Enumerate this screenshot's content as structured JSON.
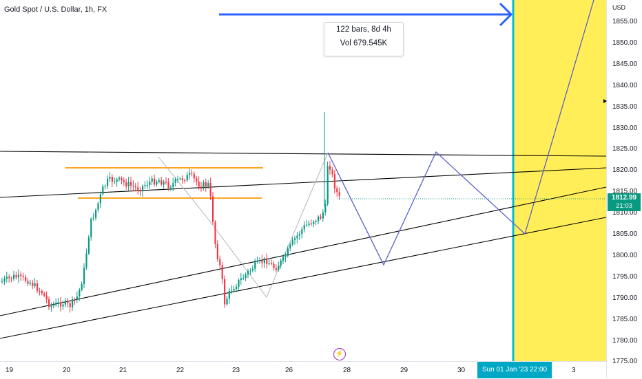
{
  "header": {
    "symbol_title": "Gold Spot / U.S. Dollar, 1h, FX"
  },
  "price_axis": {
    "currency": "USD",
    "ticks": [
      "1855.00",
      "1850.00",
      "1845.00",
      "1840.00",
      "1835.00",
      "1830.00",
      "1825.00",
      "1820.00",
      "1815.00",
      "1810.00",
      "1805.00",
      "1800.00",
      "1795.00",
      "1790.00",
      "1785.00",
      "1780.00",
      "1775.00"
    ],
    "last_price": "1812.99",
    "countdown": "21:03"
  },
  "time_axis": {
    "ticks": [
      "19",
      "20",
      "21",
      "22",
      "23",
      "26",
      "28",
      "29",
      "30",
      "3"
    ],
    "crosshair_date": "Sun 01 Jan '23   22:00"
  },
  "range_measure": {
    "bars_text": "122 bars, 8d 4h",
    "vol_text": "Vol 679.545K"
  },
  "colors": {
    "up_candle": "#089981",
    "down_candle": "#f23645",
    "highlight_zone": "#ffeb3b",
    "vertical_line": "#00bcd4",
    "arrow": "#2962ff",
    "projection": "#5b5fc7",
    "support_lines": "#ff9800",
    "trend_lines": "#000000"
  },
  "icons": {
    "lightning": "lightning-icon",
    "cursor": "cursor-icon"
  }
}
